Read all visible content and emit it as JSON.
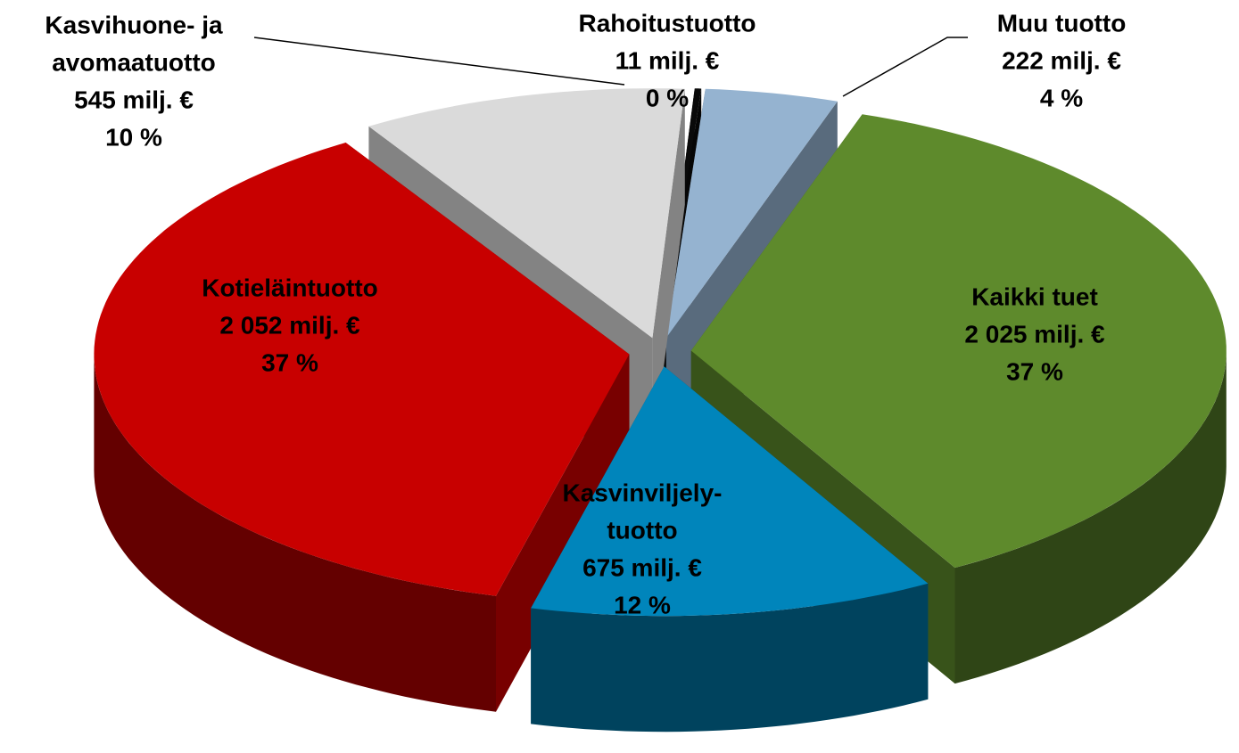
{
  "chart_data": {
    "type": "pie3d",
    "categories": [
      [
        "Kasvihuone- ja",
        "avomaatuotto"
      ],
      [
        "Rahoitustuotto"
      ],
      [
        "Muu tuotto"
      ],
      [
        "Kaikki tuet"
      ],
      [
        "Kasvinviljely-",
        "tuotto"
      ],
      [
        "Kotieläintuotto"
      ]
    ],
    "values": [
      545,
      11,
      222,
      2025,
      675,
      2052
    ],
    "value_labels": [
      "545 milj. €",
      "11 milj. €",
      "222 milj. €",
      "2 025 milj. €",
      "675 milj. €",
      "2 052 milj. €"
    ],
    "percent_labels": [
      "10 %",
      "0 %",
      "4 %",
      "37 %",
      "12 %",
      "37 %"
    ],
    "colors": [
      "#dadada",
      "#0a0a0a",
      "#95b3d0",
      "#5e8a2c",
      "#0085bb",
      "#c80000"
    ]
  }
}
